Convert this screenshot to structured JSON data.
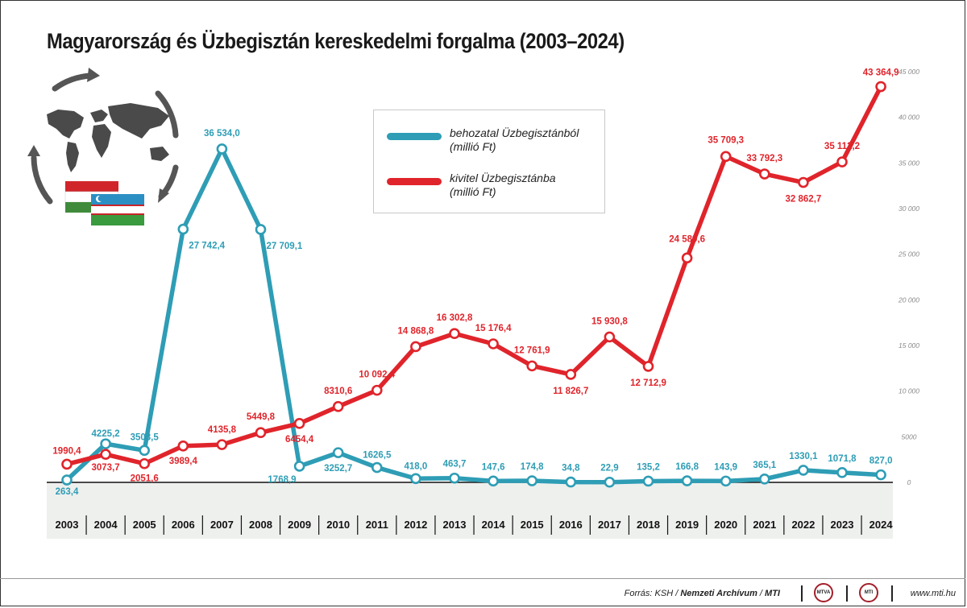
{
  "title": "Magyarország és Üzbegisztán kereskedelmi forgalma (2003–2024)",
  "legend": {
    "import_label": "behozatal Üzbegisztánból",
    "import_unit": "(millió Ft)",
    "export_label": "kivitel Üzbegisztánba",
    "export_unit": "(millió Ft)"
  },
  "footer": {
    "source_prefix": "Forrás: KSH / ",
    "source_strong": "Nemzeti Archívum",
    "source_sep": " / ",
    "source_mti": "MTI",
    "badge1": "MTVA",
    "badge2": "MTI",
    "url": "www.mti.hu"
  },
  "colors": {
    "import": "#2e9db5",
    "export": "#e0242b",
    "axis_band": "#eef0ee",
    "map": "#4a4a4a"
  },
  "icons": [
    "world-map-icon",
    "circular-arrows-icon",
    "hungary-flag-icon",
    "uzbekistan-flag-icon"
  ],
  "chart_data": {
    "type": "line",
    "title": "Magyarország és Üzbegisztán kereskedelmi forgalma (2003–2024)",
    "x": [
      2003,
      2004,
      2005,
      2006,
      2007,
      2008,
      2009,
      2010,
      2011,
      2012,
      2013,
      2014,
      2015,
      2016,
      2017,
      2018,
      2019,
      2020,
      2021,
      2022,
      2023,
      2024
    ],
    "ylim": [
      0,
      45000
    ],
    "yticks": [
      0,
      5000,
      10000,
      15000,
      20000,
      25000,
      30000,
      35000,
      40000,
      45000
    ],
    "ytick_labels": [
      "0",
      "5000",
      "10 000",
      "15 000",
      "20 000",
      "25 000",
      "30 000",
      "35 000",
      "40 000",
      "45 000"
    ],
    "y_axis_side": "right",
    "grid": false,
    "legend_position": "top-center",
    "series": [
      {
        "name": "behozatal Üzbegisztánból (millió Ft)",
        "color": "#2e9db5",
        "values": [
          263.4,
          4225.2,
          3503.5,
          27742.4,
          36534.0,
          27709.1,
          1768.9,
          3252.7,
          1626.5,
          418.0,
          463.7,
          147.6,
          174.8,
          34.8,
          22.9,
          135.2,
          166.8,
          143.9,
          365.1,
          1330.1,
          1071.8,
          827.0
        ],
        "labels": [
          "263,4",
          "4225,2",
          "3503,5",
          "27 742,4",
          "36 534,0",
          "27 709,1",
          "1768,9",
          "3252,7",
          "1626,5",
          "418,0",
          "463,7",
          "147,6",
          "174,8",
          "34,8",
          "22,9",
          "135,2",
          "166,8",
          "143,9",
          "365,1",
          "1330,1",
          "1071,8",
          "827,0"
        ]
      },
      {
        "name": "kivitel Üzbegisztánba (millió Ft)",
        "color": "#e0242b",
        "values": [
          1990.4,
          3073.7,
          2051.6,
          3989.4,
          4135.8,
          5449.8,
          6454.4,
          8310.6,
          10092.4,
          14868.8,
          16302.8,
          15176.4,
          12761.9,
          11826.7,
          15930.8,
          12712.9,
          24589.6,
          35709.3,
          33792.3,
          32862.7,
          35112.2,
          43364.9
        ],
        "labels": [
          "1990,4",
          "3073,7",
          "2051,6",
          "3989,4",
          "4135,8",
          "5449,8",
          "6454,4",
          "8310,6",
          "10 092,4",
          "14 868,8",
          "16 302,8",
          "15 176,4",
          "12 761,9",
          "11 826,7",
          "15 930,8",
          "12 712,9",
          "24 589,6",
          "35 709,3",
          "33 792,3",
          "32 862,7",
          "35 112,2",
          "43 364,9"
        ]
      }
    ]
  }
}
